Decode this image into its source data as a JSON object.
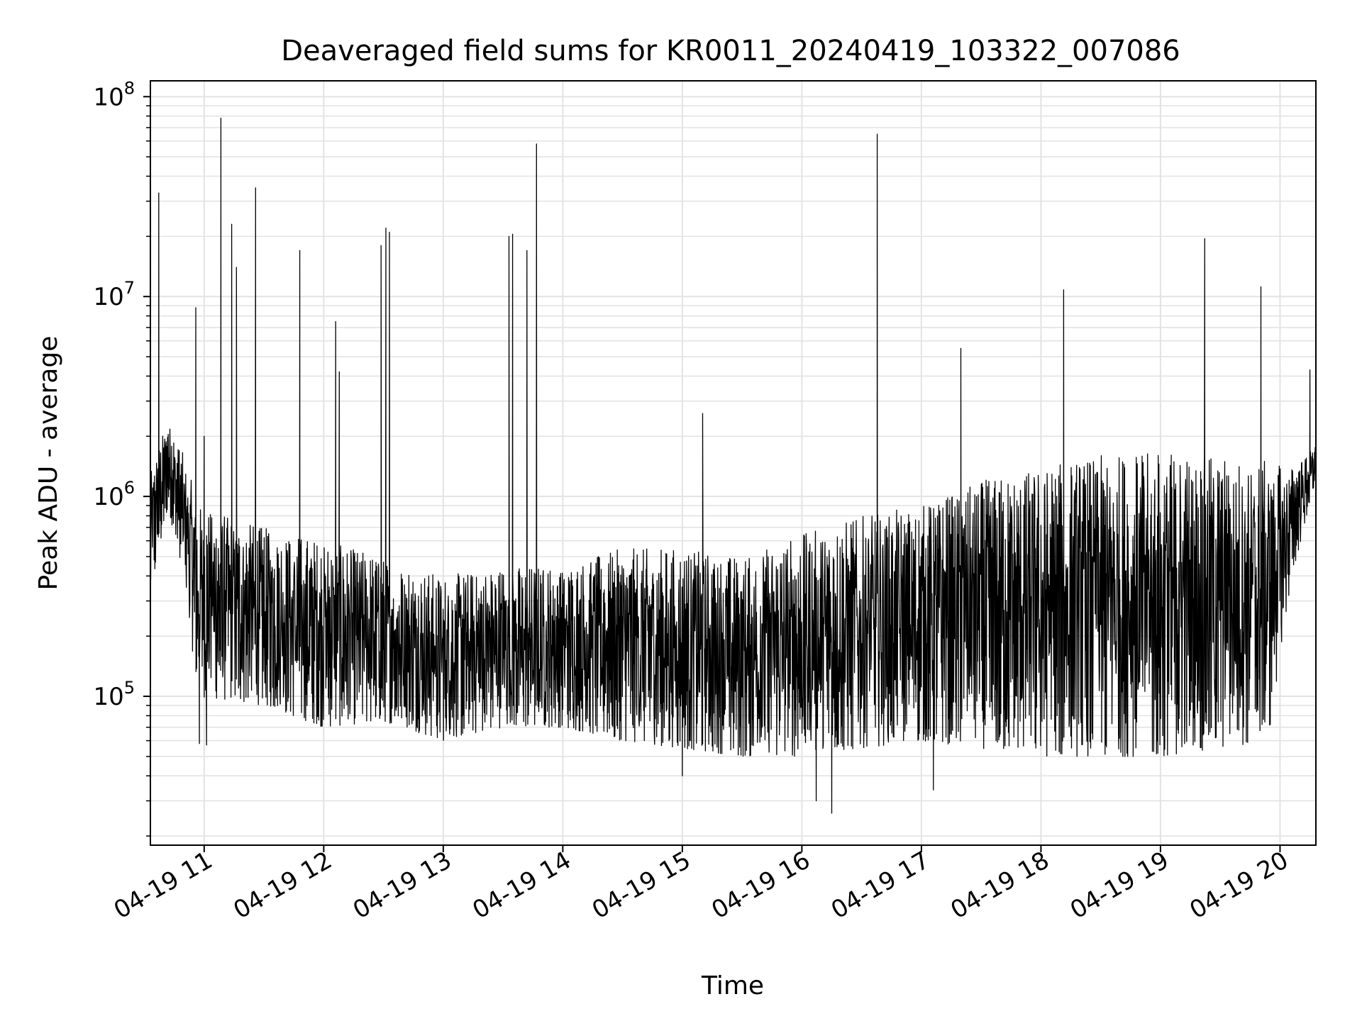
{
  "chart_data": {
    "type": "line",
    "title": "Deaveraged field sums for KR0011_20240419_103322_007086",
    "xlabel": "Time",
    "ylabel": "Peak ADU - average",
    "yscale": "log",
    "ylim": [
      18000,
      120000000
    ],
    "xlim_hours": [
      10.55,
      20.3
    ],
    "grid": true,
    "line_color": "#000000",
    "x_ticks": [
      {
        "hour": 11,
        "label": "04-19 11"
      },
      {
        "hour": 12,
        "label": "04-19 12"
      },
      {
        "hour": 13,
        "label": "04-19 13"
      },
      {
        "hour": 14,
        "label": "04-19 14"
      },
      {
        "hour": 15,
        "label": "04-19 15"
      },
      {
        "hour": 16,
        "label": "04-19 16"
      },
      {
        "hour": 17,
        "label": "04-19 17"
      },
      {
        "hour": 18,
        "label": "04-19 18"
      },
      {
        "hour": 19,
        "label": "04-19 19"
      },
      {
        "hour": 20,
        "label": "04-19 20"
      }
    ],
    "y_ticks": [
      {
        "value": 100000,
        "base": "10",
        "exp": "5"
      },
      {
        "value": 1000000,
        "base": "10",
        "exp": "6"
      },
      {
        "value": 10000000,
        "base": "10",
        "exp": "7"
      },
      {
        "value": 100000000,
        "base": "10",
        "exp": "8"
      }
    ],
    "baseline_envelope": [
      {
        "hour": 10.55,
        "low": 300000,
        "high": 1300000
      },
      {
        "hour": 10.7,
        "low": 900000,
        "high": 2500000
      },
      {
        "hour": 10.85,
        "low": 300000,
        "high": 1500000
      },
      {
        "hour": 10.95,
        "low": 100000,
        "high": 900000
      },
      {
        "hour": 11.5,
        "low": 90000,
        "high": 700000
      },
      {
        "hour": 12.0,
        "low": 70000,
        "high": 600000
      },
      {
        "hour": 12.5,
        "low": 75000,
        "high": 500000
      },
      {
        "hour": 13.0,
        "low": 60000,
        "high": 400000
      },
      {
        "hour": 13.5,
        "low": 70000,
        "high": 450000
      },
      {
        "hour": 14.0,
        "low": 70000,
        "high": 450000
      },
      {
        "hour": 14.5,
        "low": 60000,
        "high": 550000
      },
      {
        "hour": 15.0,
        "low": 55000,
        "high": 550000
      },
      {
        "hour": 15.5,
        "low": 50000,
        "high": 500000
      },
      {
        "hour": 16.0,
        "low": 50000,
        "high": 650000
      },
      {
        "hour": 16.5,
        "low": 55000,
        "high": 800000
      },
      {
        "hour": 17.0,
        "low": 60000,
        "high": 900000
      },
      {
        "hour": 17.5,
        "low": 55000,
        "high": 1200000
      },
      {
        "hour": 18.0,
        "low": 50000,
        "high": 1400000
      },
      {
        "hour": 18.5,
        "low": 50000,
        "high": 1600000
      },
      {
        "hour": 19.0,
        "low": 50000,
        "high": 1700000
      },
      {
        "hour": 19.5,
        "low": 55000,
        "high": 1600000
      },
      {
        "hour": 19.9,
        "low": 60000,
        "high": 1500000
      },
      {
        "hour": 20.1,
        "low": 400000,
        "high": 1400000
      },
      {
        "hour": 20.3,
        "low": 1200000,
        "high": 1800000
      }
    ],
    "spikes": [
      {
        "hour": 10.62,
        "value": 33000000
      },
      {
        "hour": 10.93,
        "value": 8800000
      },
      {
        "hour": 11.0,
        "value": 2000000
      },
      {
        "hour": 11.14,
        "value": 78000000
      },
      {
        "hour": 11.23,
        "value": 23000000
      },
      {
        "hour": 11.27,
        "value": 14000000
      },
      {
        "hour": 11.43,
        "value": 35000000
      },
      {
        "hour": 11.8,
        "value": 17000000
      },
      {
        "hour": 12.1,
        "value": 7500000
      },
      {
        "hour": 12.13,
        "value": 4200000
      },
      {
        "hour": 12.48,
        "value": 18000000
      },
      {
        "hour": 12.52,
        "value": 22000000
      },
      {
        "hour": 12.55,
        "value": 21000000
      },
      {
        "hour": 13.55,
        "value": 20000000
      },
      {
        "hour": 13.58,
        "value": 20500000
      },
      {
        "hour": 13.7,
        "value": 17000000
      },
      {
        "hour": 13.78,
        "value": 58000000
      },
      {
        "hour": 15.17,
        "value": 2600000
      },
      {
        "hour": 16.63,
        "value": 65000000
      },
      {
        "hour": 17.33,
        "value": 5500000
      },
      {
        "hour": 18.19,
        "value": 10800000
      },
      {
        "hour": 19.37,
        "value": 19500000
      },
      {
        "hour": 19.84,
        "value": 11200000
      },
      {
        "hour": 20.25,
        "value": 4300000
      }
    ],
    "dips": [
      {
        "hour": 16.12,
        "value": 30000
      },
      {
        "hour": 16.25,
        "value": 26000
      },
      {
        "hour": 17.1,
        "value": 34000
      },
      {
        "hour": 15.0,
        "value": 40000
      },
      {
        "hour": 10.96,
        "value": 58000
      },
      {
        "hour": 11.02,
        "value": 57000
      }
    ]
  }
}
